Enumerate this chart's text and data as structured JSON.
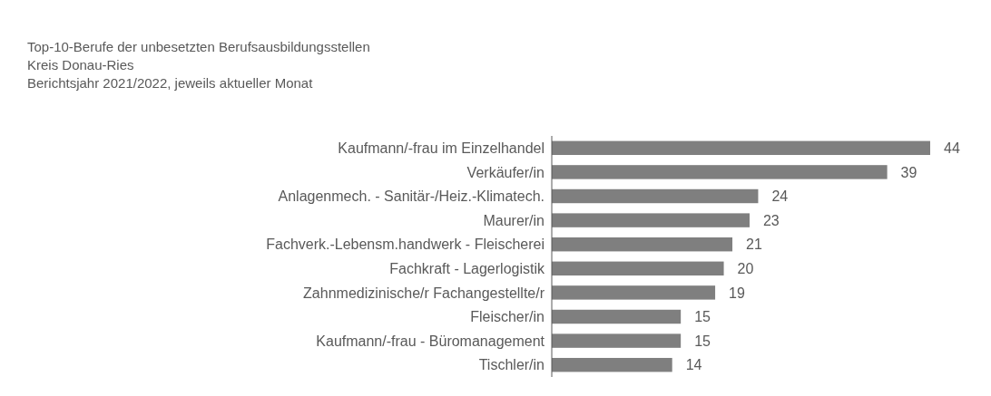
{
  "chart_data": {
    "type": "bar",
    "orientation": "horizontal",
    "title": "Top-10-Berufe der unbesetzten Berufsausbildungsstellen\nKreis Donau-Ries\nBerichtsjahr 2021/2022, jeweils aktueller Monat",
    "categories": [
      "Kaufmann/-frau im Einzelhandel",
      "Verkäufer/in",
      "Anlagenmech. - Sanitär-/Heiz.-Klimatech.",
      "Maurer/in",
      "Fachverk.-Lebensm.handwerk - Fleischerei",
      "Fachkraft - Lagerlogistik",
      "Zahnmedizinische/r Fachangestellte/r",
      "Fleischer/in",
      "Kaufmann/-frau - Büromanagement",
      "Tischler/in"
    ],
    "values": [
      44,
      39,
      24,
      23,
      21,
      20,
      19,
      15,
      15,
      14
    ],
    "color": "#7f7f7f",
    "data_labels": true
  }
}
